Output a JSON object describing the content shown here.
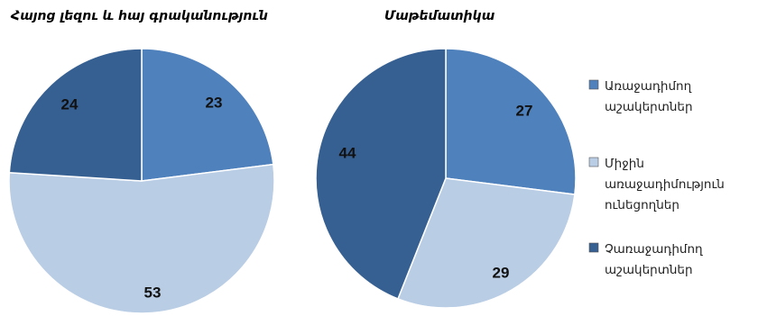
{
  "chart_data": [
    {
      "type": "pie",
      "title": "Հայոց լեզու և հայ գրականություն",
      "categories": [
        "Առաջադիմող աշակերտներ",
        "Միջին առաջադիմություն ունեցողներ",
        "Չառաջադիմող աշակերտներ"
      ],
      "values": [
        23,
        53,
        24
      ],
      "colors": [
        "#4F81BD",
        "#B9CDE5",
        "#376092"
      ]
    },
    {
      "type": "pie",
      "title": "Մաթեմատիկա",
      "categories": [
        "Առաջադիմող աշակերտներ",
        "Միջին առաջադիմություն ունեցողներ",
        "Չառաջադիմող աշակերտներ"
      ],
      "values": [
        27,
        29,
        44
      ],
      "colors": [
        "#4F81BD",
        "#B9CDE5",
        "#376092"
      ]
    }
  ],
  "legend": {
    "placement": "right",
    "items": [
      {
        "lines": [
          "Առաջադիմող",
          "աշակերտներ"
        ],
        "color": "#4F81BD"
      },
      {
        "lines": [
          "Միջին",
          "առաջադիմություն",
          "ունեցողներ"
        ],
        "color": "#B9CDE5"
      },
      {
        "lines": [
          "Չառաջադիմող",
          "աշակերտներ"
        ],
        "color": "#376092"
      }
    ]
  }
}
